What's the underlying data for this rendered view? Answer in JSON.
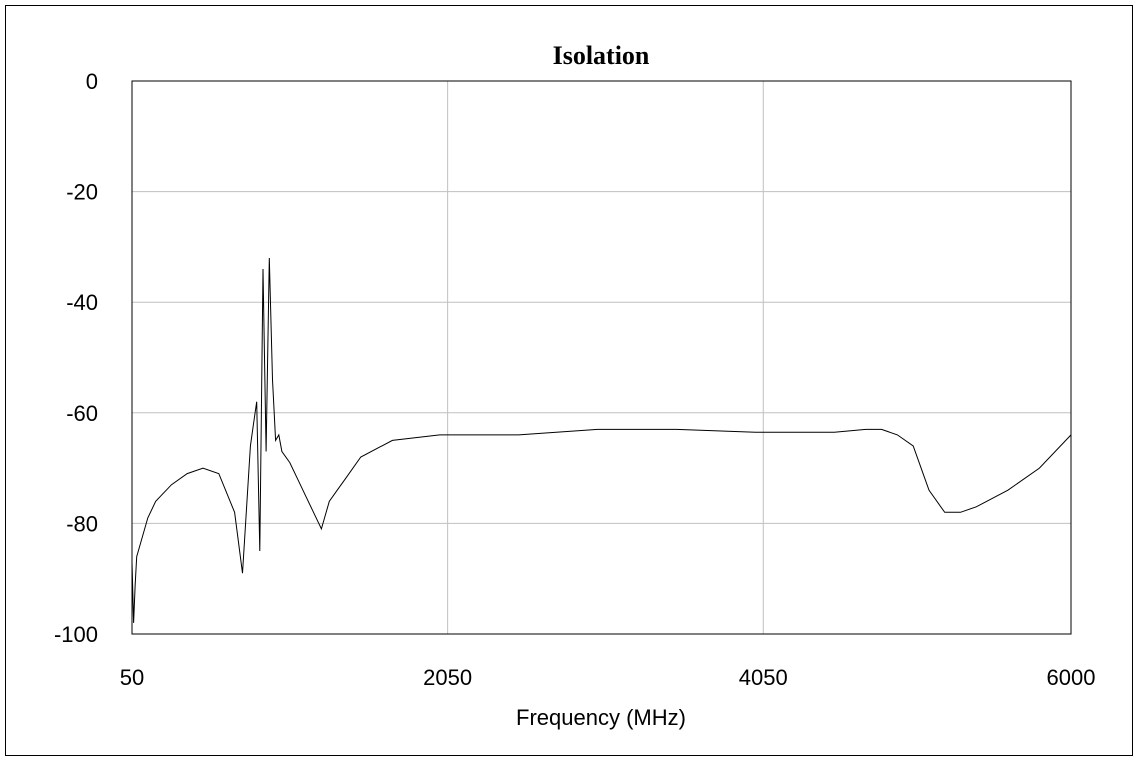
{
  "chart_data": {
    "type": "line",
    "title": "Isolation",
    "xlabel": "Frequency (MHz)",
    "ylabel": "",
    "xlim": [
      50,
      6000
    ],
    "ylim": [
      -100,
      0
    ],
    "x_ticks": [
      50,
      2050,
      4050,
      6000
    ],
    "y_ticks": [
      0,
      -20,
      -40,
      -60,
      -80,
      -100
    ],
    "grid": true,
    "legend": "none",
    "line_color": "#000000",
    "grid_color": "#c0c0c0",
    "series": [
      {
        "x": [
          50,
          60,
          70,
          80,
          100,
          150,
          200,
          300,
          400,
          500,
          600,
          700,
          750,
          800,
          820,
          840,
          860,
          880,
          900,
          920,
          940,
          960,
          980,
          1000,
          1050,
          1100,
          1150,
          1200,
          1250,
          1300,
          1350,
          1400,
          1500,
          1700,
          2000,
          2500,
          3000,
          3500,
          4000,
          4500,
          4700,
          4800,
          4900,
          5000,
          5050,
          5100,
          5200,
          5300,
          5400,
          5600,
          5800,
          6000
        ],
        "y": [
          -87,
          -98,
          -91,
          -86,
          -84,
          -79,
          -76,
          -73,
          -71,
          -70,
          -71,
          -78,
          -89,
          -66,
          -62,
          -58,
          -85,
          -34,
          -67,
          -32,
          -54,
          -65,
          -64,
          -67,
          -69,
          -72,
          -75,
          -78,
          -81,
          -76,
          -74,
          -72,
          -68,
          -65,
          -64,
          -64,
          -63,
          -63,
          -63.5,
          -63.5,
          -63,
          -63,
          -64,
          -66,
          -70,
          -74,
          -78,
          -78,
          -77,
          -74,
          -70,
          -64
        ]
      }
    ]
  }
}
